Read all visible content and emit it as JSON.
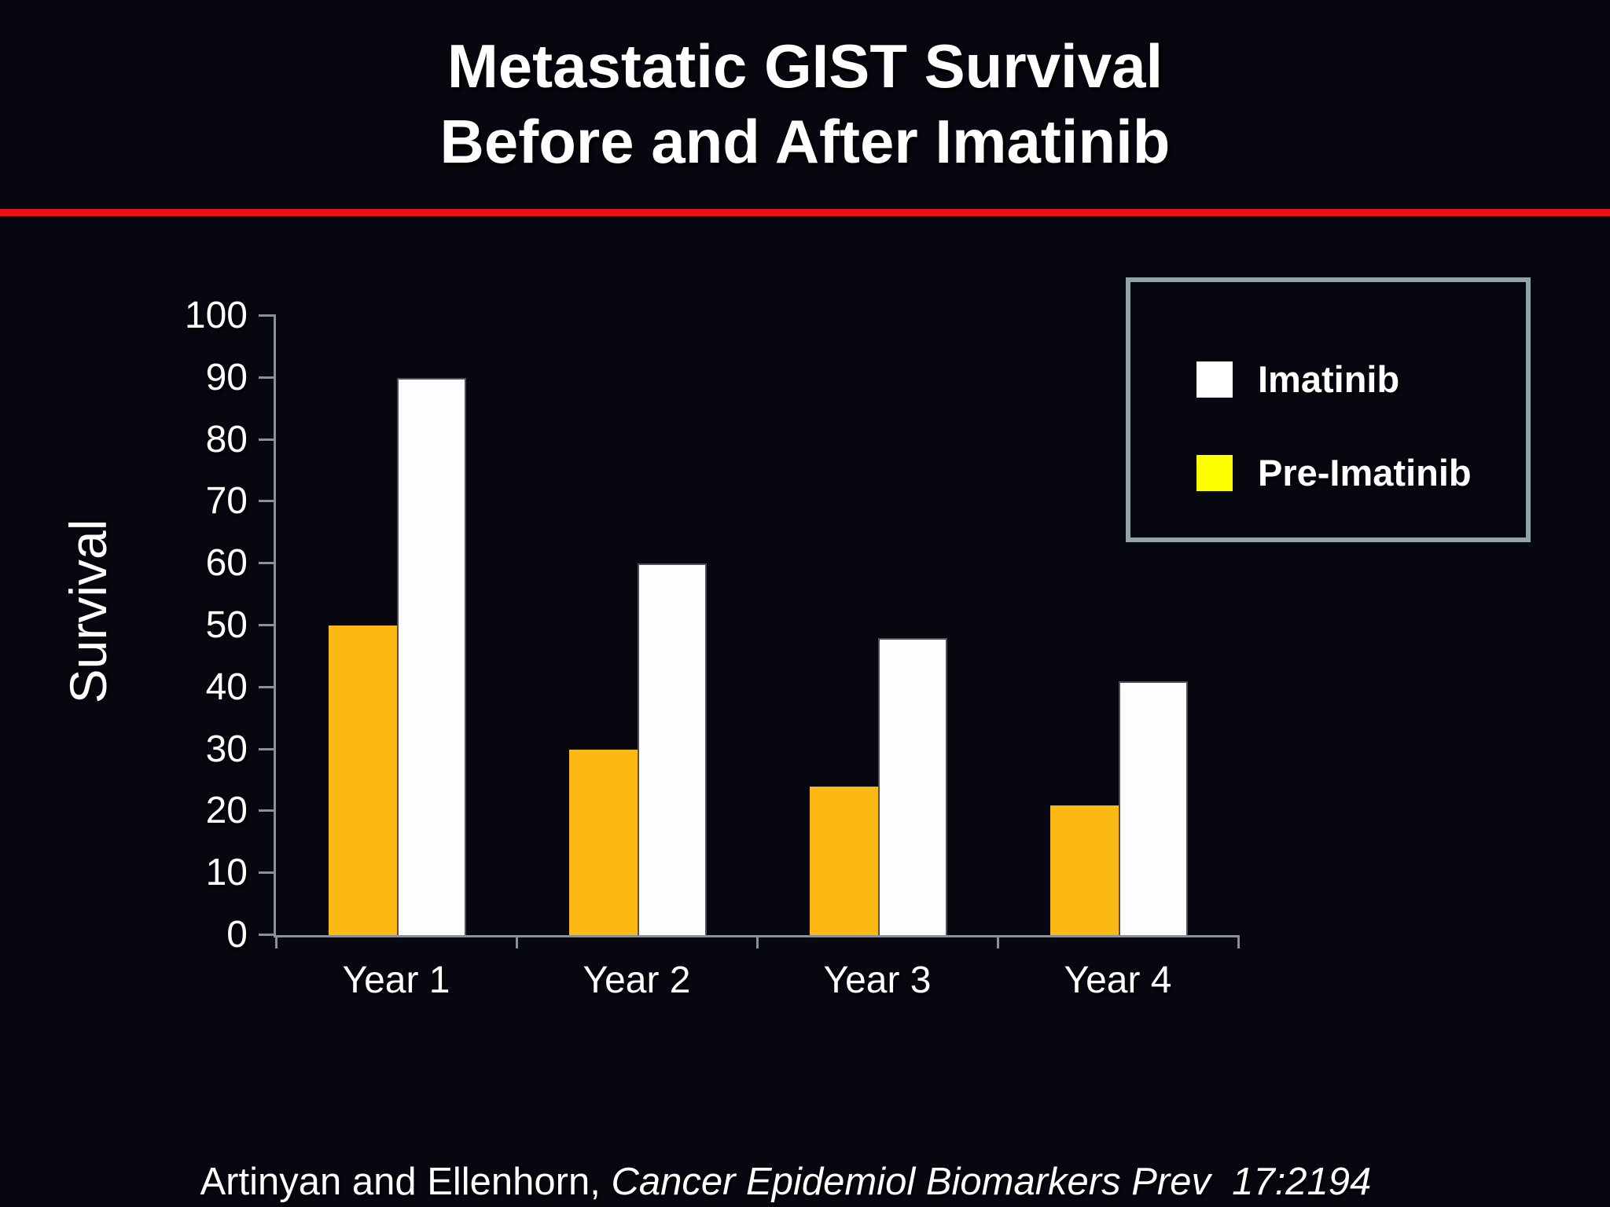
{
  "slide": {
    "title_line1": "Metastatic GIST Survival",
    "title_line2": "Before and After Imatinib",
    "citation_normal": "Artinyan and Ellenhorn, ",
    "citation_italic": "Cancer Epidemiol Biomarkers Prev  17:2194"
  },
  "colors": {
    "background": "#07070f",
    "divider_red": "#ee1112",
    "axis": "#8a8f9c",
    "text": "#ffffff",
    "bar_pre_imatinib": "#fcb914",
    "bar_imatinib": "#fdfdff",
    "legend_border": "#91a3ab",
    "legend_swatch_imatinib": "#ffffff",
    "legend_swatch_pre_imatinib": "#ffff00"
  },
  "chart_data": {
    "type": "bar",
    "title": "Metastatic GIST Survival Before and After Imatinib",
    "categories": [
      "Year 1",
      "Year 2",
      "Year 3",
      "Year 4"
    ],
    "series": [
      {
        "name": "Pre-Imatinib",
        "color": "#fcb914",
        "values": [
          50,
          30,
          24,
          21
        ]
      },
      {
        "name": "Imatinib",
        "color": "#fdfdff",
        "values": [
          90,
          60,
          48,
          41
        ]
      }
    ],
    "xlabel": "",
    "ylabel": "Survival",
    "ylim": [
      0,
      100
    ],
    "ytick_step": 10,
    "grid": false,
    "legend_position": "top-right",
    "legend": [
      {
        "label": "Imatinib",
        "swatch": "#ffffff"
      },
      {
        "label": "Pre-Imatinib",
        "swatch": "#ffff00"
      }
    ]
  }
}
